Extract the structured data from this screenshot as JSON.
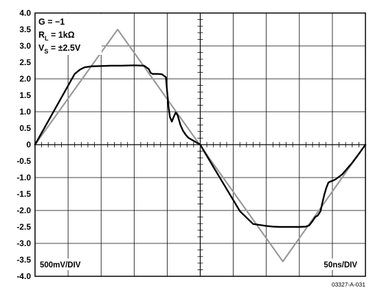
{
  "chart_data": {
    "type": "line",
    "x_unit": "ns",
    "y_unit": "V",
    "xlim": [
      -250,
      250
    ],
    "ylim": [
      -4.0,
      4.0
    ],
    "yticks": [
      "4.0",
      "3.5",
      "3.0",
      "2.5",
      "2.0",
      "1.5",
      "1.0",
      "0.5",
      "0",
      "-0.5",
      "-1.0",
      "-1.5",
      "-2.0",
      "-2.5",
      "-3.0",
      "-3.5",
      "-4.0"
    ],
    "ytick_values": [
      4.0,
      3.5,
      3.0,
      2.5,
      2.0,
      1.5,
      1.0,
      0.5,
      0,
      -0.5,
      -1.0,
      -1.5,
      -2.0,
      -2.5,
      -3.0,
      -3.5,
      -4.0
    ],
    "grid": true,
    "annotations": {
      "gain_label": "G = −1",
      "rl_main": "R",
      "rl_sub": "L",
      "rl_rest": " = 1kΩ",
      "vs_main": "V",
      "vs_sub": "S",
      "vs_rest": " = ±2.5V",
      "vertical_scale": "500mV/DIV",
      "horizontal_scale": "50ns/DIV"
    },
    "figure_id": "03327-A-031",
    "series": [
      {
        "color": "#999999",
        "x": [
          -250,
          -125,
          125,
          250
        ],
        "y": [
          0,
          3.5,
          -3.55,
          0
        ]
      },
      {
        "color": "#000000",
        "x": [
          -250,
          -190,
          -182,
          -175,
          -165,
          -150,
          -135,
          -120,
          -100,
          -85,
          -78,
          -75,
          -72,
          -64,
          -58,
          -52,
          -50,
          -48,
          -46,
          -43,
          -40,
          -37,
          -34,
          -30,
          -26,
          -22,
          -18,
          -12,
          -6,
          0,
          20,
          40,
          60,
          80,
          100,
          105,
          110,
          120,
          130,
          140,
          150,
          160,
          165,
          170,
          174,
          178,
          182,
          185,
          188,
          191,
          194,
          197,
          200,
          205,
          215,
          230,
          240,
          250
        ],
        "y": [
          0,
          2.15,
          2.28,
          2.35,
          2.38,
          2.39,
          2.4,
          2.4,
          2.41,
          2.4,
          2.3,
          2.18,
          2.15,
          2.15,
          2.14,
          2.05,
          1.6,
          1.15,
          0.85,
          0.7,
          0.85,
          0.98,
          0.88,
          0.6,
          0.42,
          0.3,
          0.21,
          0.14,
          0.07,
          0,
          -0.68,
          -1.35,
          -2.02,
          -2.41,
          -2.47,
          -2.48,
          -2.49,
          -2.5,
          -2.5,
          -2.5,
          -2.5,
          -2.49,
          -2.45,
          -2.32,
          -2.2,
          -2.15,
          -2.02,
          -1.75,
          -1.5,
          -1.3,
          -1.15,
          -1.12,
          -1.1,
          -1.05,
          -0.9,
          -0.55,
          -0.28,
          0
        ]
      }
    ]
  }
}
